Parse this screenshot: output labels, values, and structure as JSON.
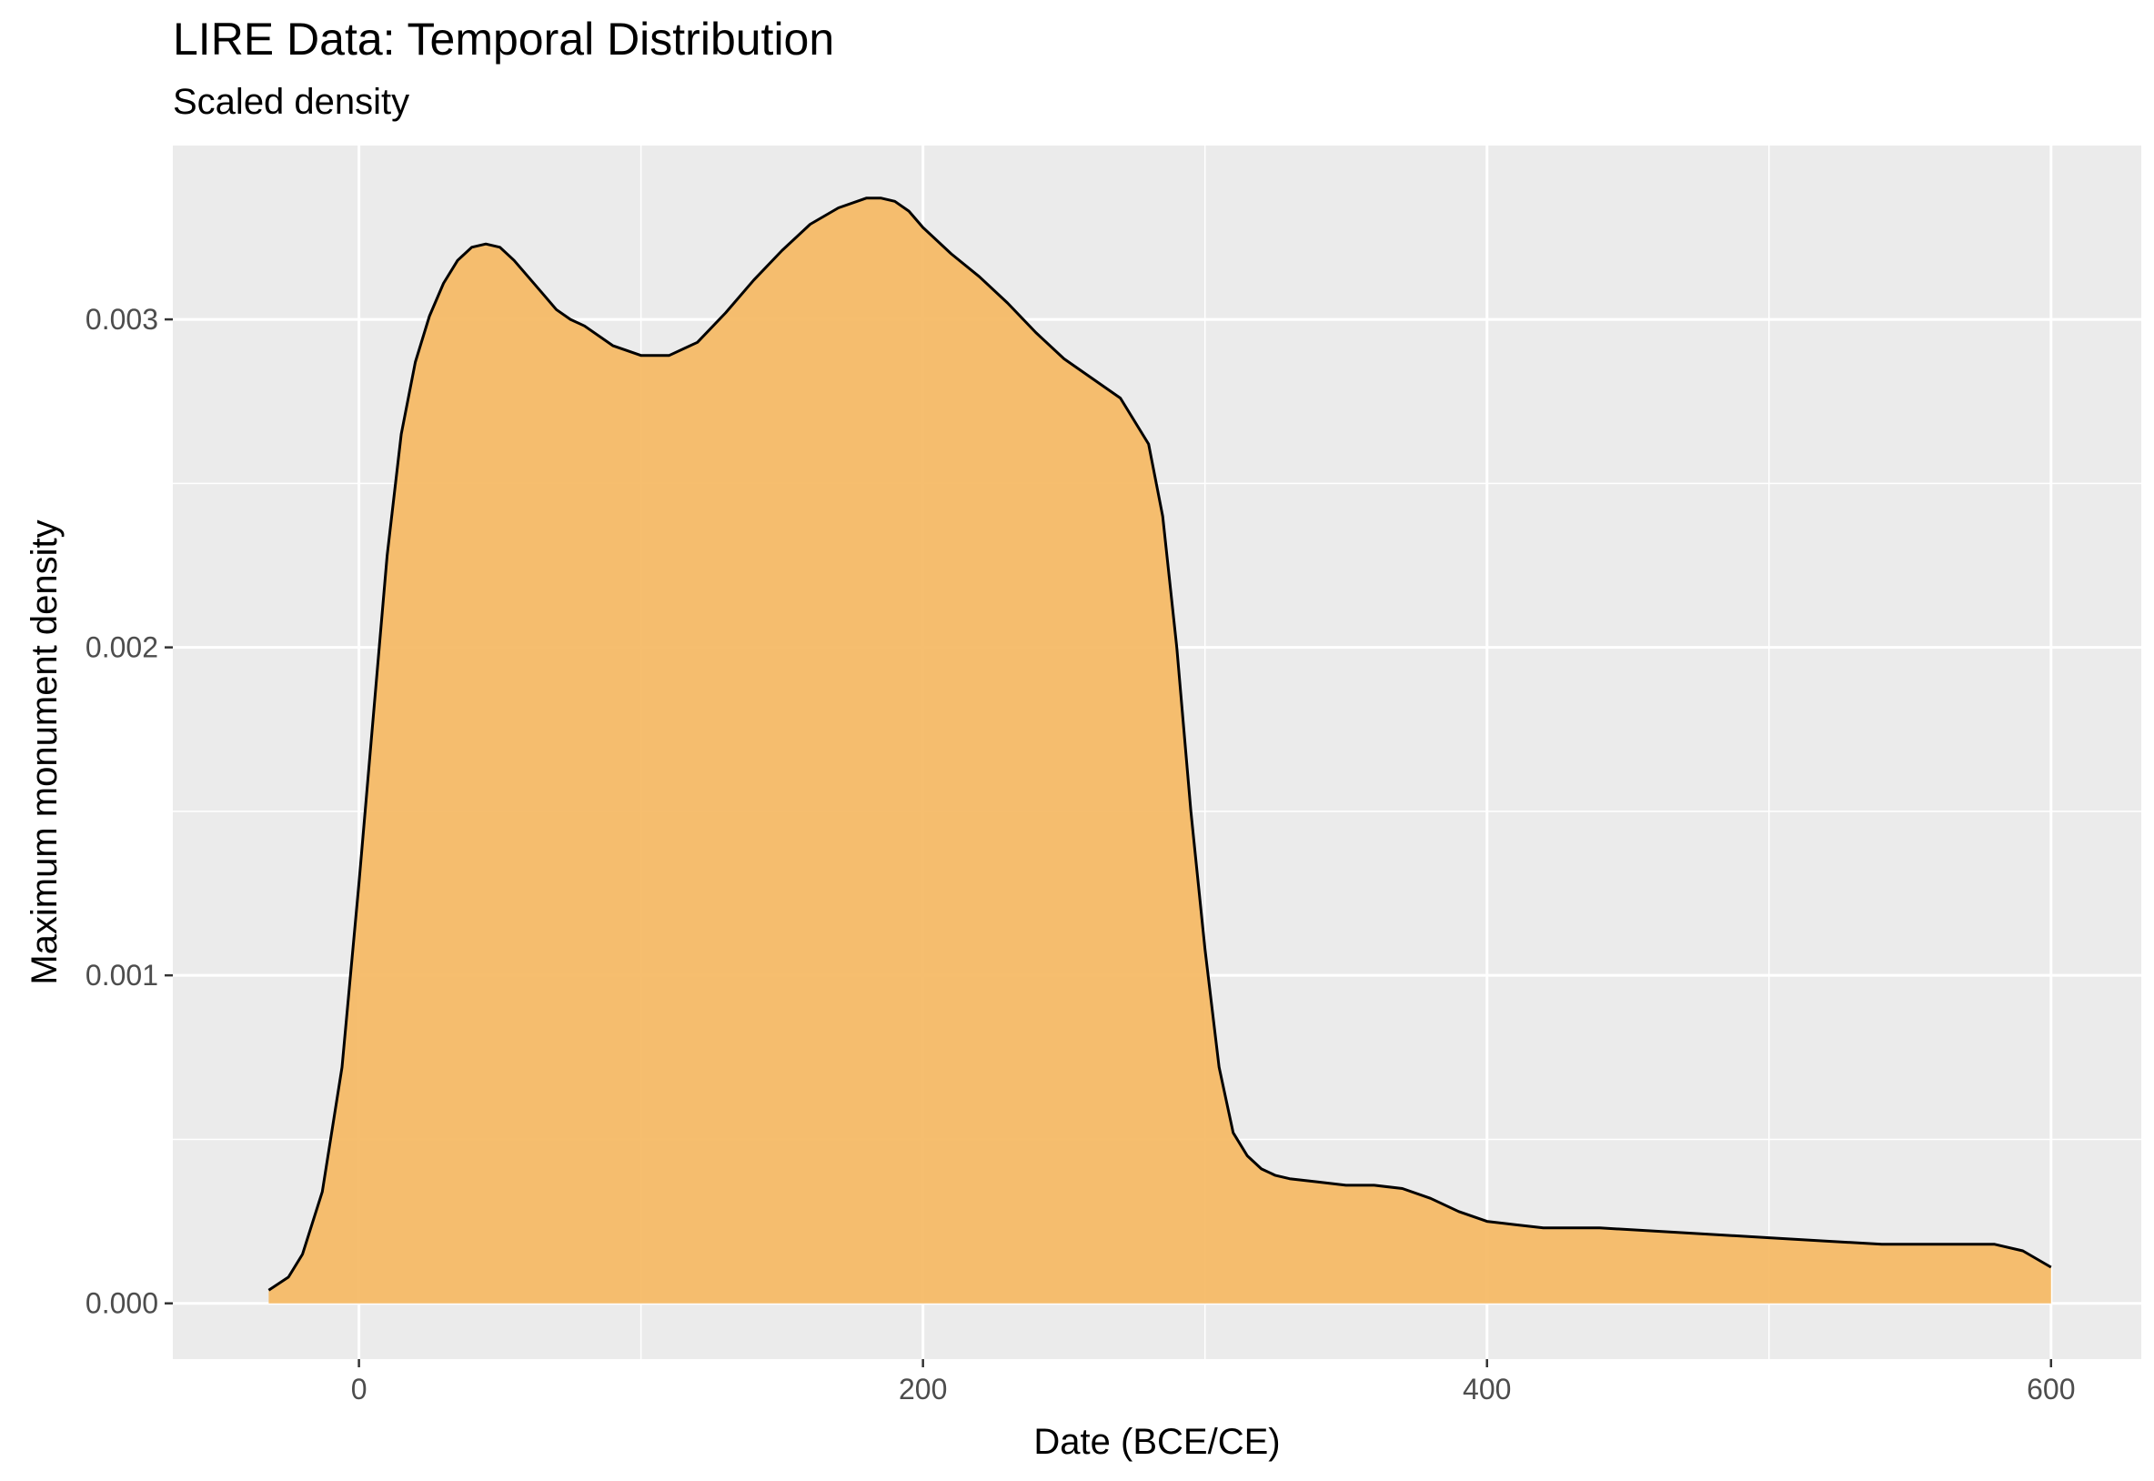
{
  "chart_data": {
    "type": "area",
    "title": "LIRE Data: Temporal Distribution",
    "subtitle": "Scaled density",
    "xlabel": "Date (BCE/CE)",
    "ylabel": "Maximum monument density",
    "xlim": [
      -66,
      632
    ],
    "ylim": [
      -0.00017,
      0.00353
    ],
    "x_ticks": [
      0,
      200,
      400,
      600
    ],
    "x_tick_labels": [
      "0",
      "200",
      "400",
      "600"
    ],
    "x_minor_ticks": [
      100,
      300,
      500
    ],
    "y_ticks": [
      0.0,
      0.001,
      0.002,
      0.003
    ],
    "y_tick_labels": [
      "0.000",
      "0.001",
      "0.002",
      "0.003"
    ],
    "y_minor_ticks": [
      0.0005,
      0.0015,
      0.0025
    ],
    "grid": true,
    "colors": {
      "fill": "#f5b963",
      "line": "#000000",
      "panel": "#ebebeb",
      "grid": "#ffffff"
    },
    "series": [
      {
        "x": [
          -32,
          -25,
          -20,
          -13,
          -6,
          0,
          6,
          10,
          15,
          20,
          25,
          30,
          35,
          40,
          45,
          50,
          55,
          60,
          65,
          70,
          75,
          80,
          90,
          100,
          110,
          120,
          130,
          140,
          150,
          160,
          170,
          180,
          185,
          190,
          195,
          200,
          210,
          220,
          230,
          240,
          250,
          260,
          270,
          280,
          285,
          290,
          295,
          300,
          305,
          310,
          315,
          320,
          325,
          330,
          340,
          350,
          360,
          370,
          380,
          390,
          400,
          410,
          420,
          430,
          440,
          460,
          480,
          500,
          520,
          540,
          560,
          580,
          590,
          600
        ],
        "y": [
          4e-05,
          8e-05,
          0.00015,
          0.00034,
          0.00072,
          0.00128,
          0.00188,
          0.00228,
          0.00265,
          0.00287,
          0.00301,
          0.00311,
          0.00318,
          0.00322,
          0.00323,
          0.00322,
          0.00318,
          0.00313,
          0.00308,
          0.00303,
          0.003,
          0.00298,
          0.00292,
          0.00289,
          0.00289,
          0.00293,
          0.00302,
          0.00312,
          0.00321,
          0.00329,
          0.00334,
          0.00337,
          0.00337,
          0.00336,
          0.00333,
          0.00328,
          0.0032,
          0.00313,
          0.00305,
          0.00296,
          0.00288,
          0.00282,
          0.00276,
          0.00262,
          0.0024,
          0.002,
          0.0015,
          0.00108,
          0.00072,
          0.00052,
          0.00045,
          0.00041,
          0.00039,
          0.00038,
          0.00037,
          0.00036,
          0.00036,
          0.00035,
          0.00032,
          0.00028,
          0.00025,
          0.00024,
          0.00023,
          0.00023,
          0.00023,
          0.00022,
          0.00021,
          0.0002,
          0.00019,
          0.00018,
          0.00018,
          0.00018,
          0.00016,
          0.00011
        ]
      }
    ]
  }
}
